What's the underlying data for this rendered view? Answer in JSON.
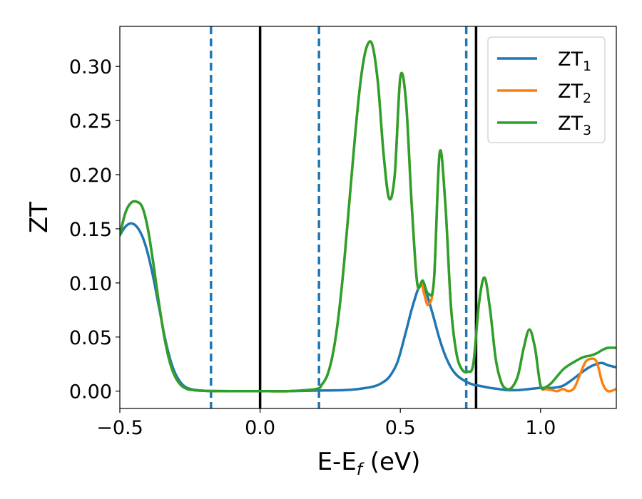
{
  "chart_data": {
    "type": "line",
    "xlabel": "E-E",
    "xlabel_sub": "f",
    "xlabel_unit": " (eV)",
    "ylabel": "ZT",
    "xlim": [
      -0.5,
      1.27
    ],
    "ylim": [
      -0.016,
      0.337
    ],
    "xticks": [
      -0.5,
      0.0,
      0.5,
      1.0
    ],
    "xtick_labels": [
      "−0.5",
      "0.0",
      "0.5",
      "1.0"
    ],
    "yticks": [
      0.0,
      0.05,
      0.1,
      0.15,
      0.2,
      0.25,
      0.3
    ],
    "ytick_labels": [
      "0.00",
      "0.05",
      "0.10",
      "0.15",
      "0.20",
      "0.25",
      "0.30"
    ],
    "grid": false,
    "legend_position": "top-right",
    "vlines_solid": [
      0.0,
      0.77
    ],
    "vlines_dashed": [
      -0.175,
      0.21,
      0.735
    ],
    "colors": {
      "solid_vline": "#000000",
      "dashed_vline": "#1f77b4"
    },
    "series": [
      {
        "name": "ZT",
        "name_sub": "1",
        "color": "#1f77b4",
        "x": [
          -0.5,
          -0.48,
          -0.46,
          -0.44,
          -0.42,
          -0.4,
          -0.38,
          -0.36,
          -0.34,
          -0.32,
          -0.3,
          -0.28,
          -0.26,
          -0.24,
          -0.22,
          -0.2,
          -0.18,
          -0.15,
          -0.1,
          0.0,
          0.1,
          0.2,
          0.3,
          0.35,
          0.4,
          0.43,
          0.46,
          0.49,
          0.52,
          0.54,
          0.56,
          0.57,
          0.58,
          0.59,
          0.6,
          0.62,
          0.64,
          0.66,
          0.68,
          0.7,
          0.72,
          0.74,
          0.76,
          0.78,
          0.8,
          0.82,
          0.85,
          0.88,
          0.92,
          0.96,
          1.0,
          1.04,
          1.08,
          1.12,
          1.15,
          1.18,
          1.2,
          1.22,
          1.24,
          1.27
        ],
        "y": [
          0.144,
          0.152,
          0.155,
          0.152,
          0.143,
          0.127,
          0.104,
          0.077,
          0.05,
          0.029,
          0.015,
          0.007,
          0.003,
          0.0015,
          0.0008,
          0.0004,
          0.0002,
          0.0001,
          0.0,
          0.0,
          0.0,
          0.0005,
          0.001,
          0.002,
          0.004,
          0.007,
          0.013,
          0.027,
          0.055,
          0.075,
          0.092,
          0.097,
          0.097,
          0.093,
          0.085,
          0.067,
          0.048,
          0.033,
          0.022,
          0.015,
          0.011,
          0.008,
          0.006,
          0.005,
          0.004,
          0.003,
          0.002,
          0.001,
          0.001,
          0.002,
          0.003,
          0.003,
          0.005,
          0.012,
          0.018,
          0.023,
          0.025,
          0.026,
          0.024,
          0.022
        ]
      },
      {
        "name": "ZT",
        "name_sub": "2",
        "color": "#ff7f0e",
        "x": [
          -0.5,
          -0.48,
          -0.46,
          -0.44,
          -0.42,
          -0.4,
          -0.38,
          -0.36,
          -0.34,
          -0.32,
          -0.3,
          -0.28,
          -0.26,
          -0.24,
          -0.22,
          -0.2,
          -0.17,
          -0.1,
          0.0,
          0.1,
          0.2,
          0.22,
          0.24,
          0.26,
          0.28,
          0.3,
          0.32,
          0.34,
          0.36,
          0.38,
          0.4,
          0.42,
          0.44,
          0.46,
          0.48,
          0.5,
          0.52,
          0.54,
          0.56,
          0.575,
          0.585,
          0.6,
          0.62,
          0.64,
          0.66,
          0.68,
          0.7,
          0.72,
          0.74,
          0.76,
          0.78,
          0.8,
          0.82,
          0.84,
          0.86,
          0.88,
          0.9,
          0.92,
          0.94,
          0.96,
          0.98,
          1.0,
          1.02,
          1.04,
          1.06,
          1.08,
          1.1,
          1.12,
          1.14,
          1.16,
          1.18,
          1.2,
          1.22,
          1.24,
          1.27
        ],
        "y": [
          0.144,
          0.165,
          0.174,
          0.175,
          0.17,
          0.15,
          0.117,
          0.08,
          0.048,
          0.025,
          0.012,
          0.005,
          0.002,
          0.001,
          0.0005,
          0.0003,
          0.0001,
          0.0,
          0.0,
          0.0,
          0.002,
          0.006,
          0.015,
          0.035,
          0.07,
          0.12,
          0.18,
          0.24,
          0.29,
          0.318,
          0.32,
          0.285,
          0.22,
          0.178,
          0.2,
          0.29,
          0.268,
          0.175,
          0.1,
          0.1,
          0.09,
          0.08,
          0.103,
          0.22,
          0.175,
          0.08,
          0.035,
          0.02,
          0.018,
          0.025,
          0.08,
          0.105,
          0.075,
          0.03,
          0.008,
          0.002,
          0.004,
          0.015,
          0.04,
          0.057,
          0.04,
          0.005,
          0.002,
          0.001,
          0.0,
          0.002,
          0.0,
          0.003,
          0.015,
          0.027,
          0.03,
          0.027,
          0.008,
          0.0,
          0.002
        ]
      },
      {
        "name": "ZT",
        "name_sub": "3",
        "color": "#2ca02c",
        "x": [
          -0.5,
          -0.48,
          -0.46,
          -0.44,
          -0.42,
          -0.4,
          -0.38,
          -0.36,
          -0.34,
          -0.32,
          -0.3,
          -0.28,
          -0.26,
          -0.24,
          -0.22,
          -0.2,
          -0.17,
          -0.1,
          0.0,
          0.1,
          0.2,
          0.22,
          0.24,
          0.26,
          0.28,
          0.3,
          0.32,
          0.34,
          0.36,
          0.38,
          0.4,
          0.42,
          0.44,
          0.46,
          0.48,
          0.5,
          0.52,
          0.54,
          0.56,
          0.58,
          0.6,
          0.62,
          0.64,
          0.66,
          0.68,
          0.7,
          0.72,
          0.74,
          0.76,
          0.78,
          0.8,
          0.82,
          0.84,
          0.86,
          0.88,
          0.9,
          0.92,
          0.94,
          0.96,
          0.98,
          1.0,
          1.02,
          1.04,
          1.06,
          1.08,
          1.1,
          1.12,
          1.14,
          1.16,
          1.18,
          1.2,
          1.22,
          1.24,
          1.27
        ],
        "y": [
          0.144,
          0.165,
          0.174,
          0.175,
          0.17,
          0.15,
          0.117,
          0.08,
          0.048,
          0.025,
          0.012,
          0.005,
          0.002,
          0.001,
          0.0005,
          0.0003,
          0.0001,
          0.0,
          0.0,
          0.0,
          0.002,
          0.006,
          0.015,
          0.035,
          0.07,
          0.12,
          0.18,
          0.24,
          0.29,
          0.318,
          0.32,
          0.285,
          0.22,
          0.178,
          0.2,
          0.29,
          0.268,
          0.175,
          0.1,
          0.102,
          0.09,
          0.103,
          0.22,
          0.175,
          0.08,
          0.035,
          0.02,
          0.018,
          0.025,
          0.08,
          0.105,
          0.075,
          0.03,
          0.008,
          0.002,
          0.004,
          0.015,
          0.04,
          0.057,
          0.04,
          0.005,
          0.004,
          0.008,
          0.014,
          0.02,
          0.024,
          0.027,
          0.03,
          0.032,
          0.033,
          0.035,
          0.038,
          0.04,
          0.04
        ]
      }
    ]
  }
}
